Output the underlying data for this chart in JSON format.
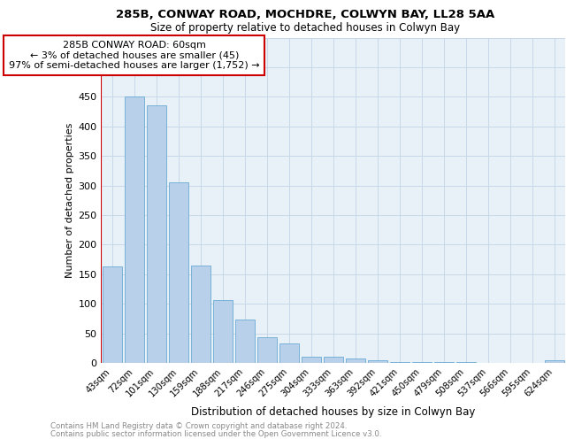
{
  "title1": "285B, CONWAY ROAD, MOCHDRE, COLWYN BAY, LL28 5AA",
  "title2": "Size of property relative to detached houses in Colwyn Bay",
  "xlabel": "Distribution of detached houses by size in Colwyn Bay",
  "ylabel": "Number of detached properties",
  "categories": [
    "43sqm",
    "72sqm",
    "101sqm",
    "130sqm",
    "159sqm",
    "188sqm",
    "217sqm",
    "246sqm",
    "275sqm",
    "304sqm",
    "333sqm",
    "363sqm",
    "392sqm",
    "421sqm",
    "450sqm",
    "479sqm",
    "508sqm",
    "537sqm",
    "566sqm",
    "595sqm",
    "624sqm"
  ],
  "values": [
    163,
    450,
    435,
    305,
    165,
    107,
    73,
    43,
    33,
    10,
    10,
    8,
    5,
    2,
    2,
    1,
    1,
    0,
    0,
    0,
    4
  ],
  "bar_color": "#b8d0ea",
  "bar_edge_color": "#6aaad4",
  "vline_color": "#cc0000",
  "annotation_text": "285B CONWAY ROAD: 60sqm\n← 3% of detached houses are smaller (45)\n97% of semi-detached houses are larger (1,752) →",
  "annotation_box_color": "#ffffff",
  "annotation_box_edge": "#cc0000",
  "ylim": [
    0,
    550
  ],
  "yticks": [
    0,
    50,
    100,
    150,
    200,
    250,
    300,
    350,
    400,
    450,
    500,
    550
  ],
  "footer1": "Contains HM Land Registry data © Crown copyright and database right 2024.",
  "footer2": "Contains public sector information licensed under the Open Government Licence v3.0.",
  "grid_color": "#c8d8e8",
  "background_color": "#e8f0f8"
}
